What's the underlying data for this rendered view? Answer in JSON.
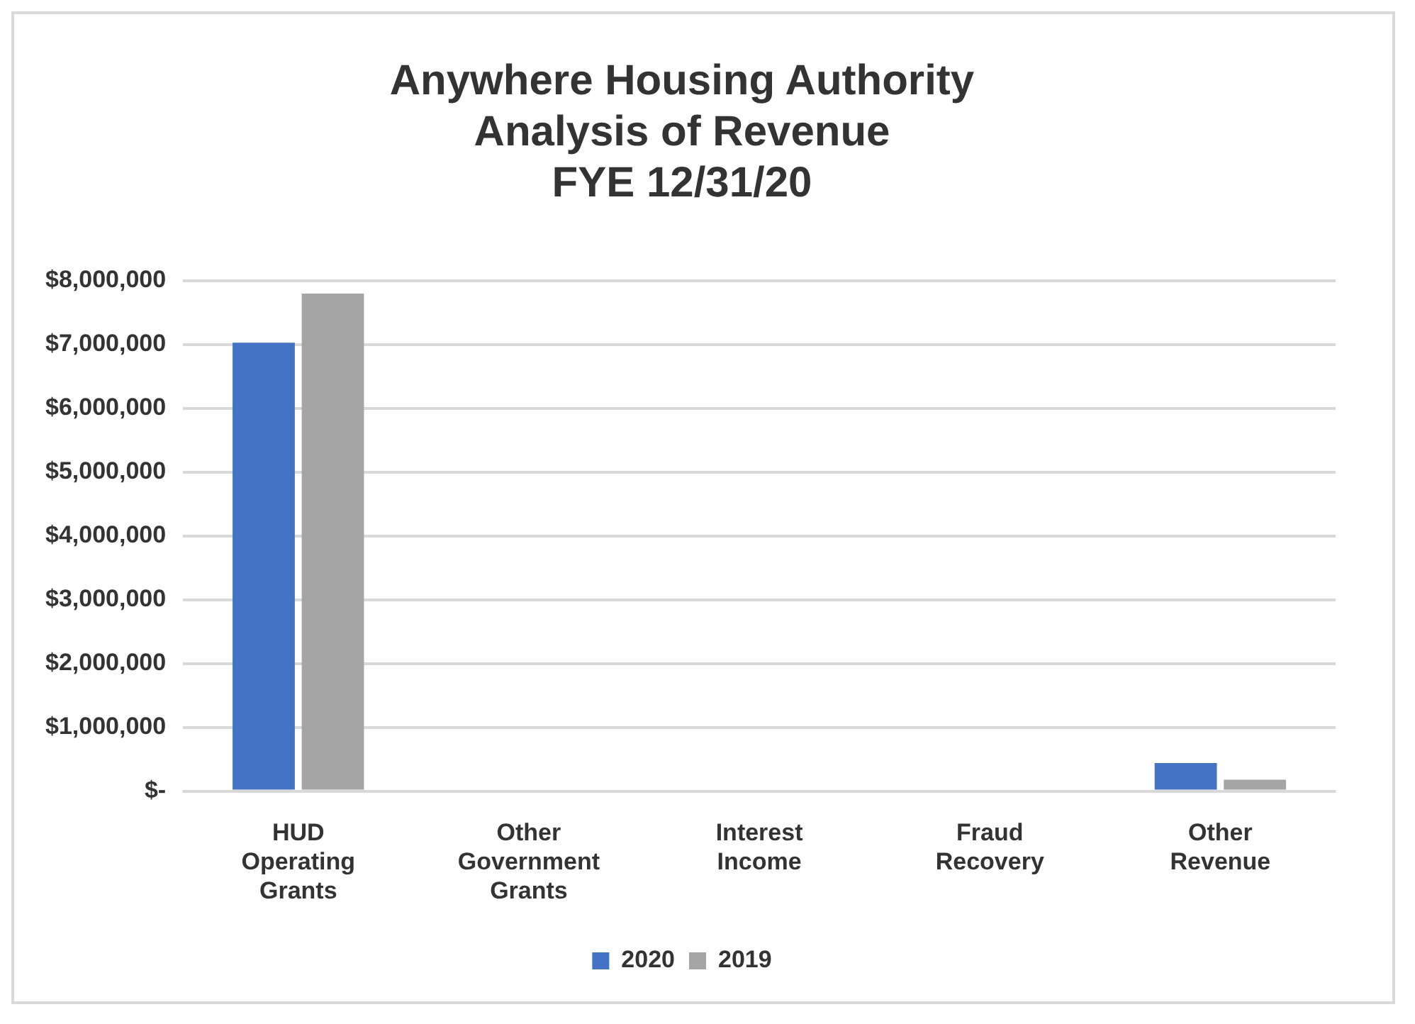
{
  "chart_data": {
    "type": "bar",
    "title": "Anywhere Housing Authority\nAnalysis of Revenue\nFYE 12/31/20",
    "categories": [
      "HUD Operating Grants",
      "Other Government Grants",
      "Interest Income",
      "Fraud Recovery",
      "Other Revenue"
    ],
    "series": [
      {
        "name": "2020",
        "color": "#4472c4",
        "values": [
          7030000,
          0,
          0,
          0,
          440000
        ]
      },
      {
        "name": "2019",
        "color": "#a5a5a5",
        "values": [
          7800000,
          0,
          0,
          0,
          180000
        ]
      }
    ],
    "ylim": [
      0,
      8000000
    ],
    "yticks": [
      {
        "value": 0,
        "label": "$-"
      },
      {
        "value": 1000000,
        "label": "$1,000,000"
      },
      {
        "value": 2000000,
        "label": "$2,000,000"
      },
      {
        "value": 3000000,
        "label": "$3,000,000"
      },
      {
        "value": 4000000,
        "label": "$4,000,000"
      },
      {
        "value": 5000000,
        "label": "$5,000,000"
      },
      {
        "value": 6000000,
        "label": "$6,000,000"
      },
      {
        "value": 7000000,
        "label": "$7,000,000"
      },
      {
        "value": 8000000,
        "label": "$8,000,000"
      }
    ],
    "grid": "y",
    "legend": "bottom"
  }
}
